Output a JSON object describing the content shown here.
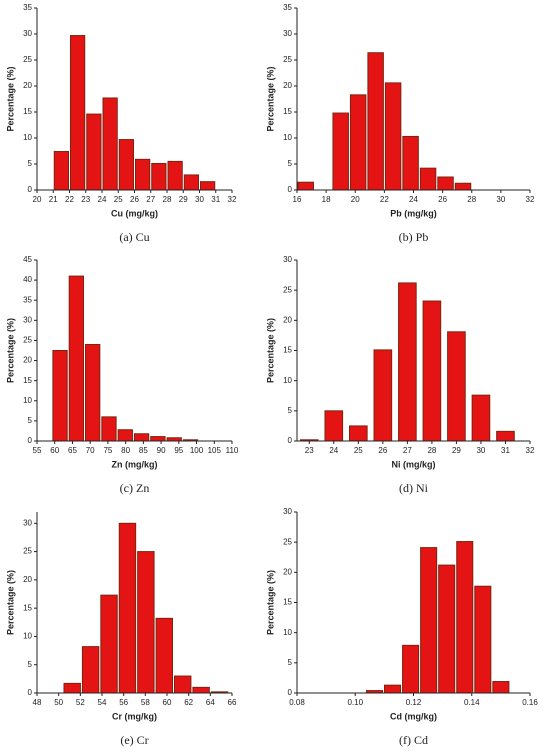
{
  "chart_data": [
    {
      "type": "histogram",
      "caption": "(a) Cu",
      "xlabel": "Cu (mg/kg)",
      "ylabel": "Percentage (%)",
      "color": "#e41414",
      "edge_color": "#7a2410",
      "bins": [
        21,
        22,
        23,
        24,
        25,
        26,
        27,
        28,
        29,
        30,
        31
      ],
      "values": [
        7.4,
        29.7,
        14.6,
        17.7,
        9.7,
        5.9,
        5.1,
        5.5,
        2.9,
        1.6
      ],
      "xlim": [
        20,
        32
      ],
      "xticks": [
        20,
        21,
        22,
        23,
        24,
        25,
        26,
        27,
        28,
        29,
        30,
        31,
        32
      ],
      "ylim": [
        0,
        35
      ],
      "yticks": [
        0,
        5,
        10,
        15,
        20,
        25,
        30,
        35
      ]
    },
    {
      "type": "histogram",
      "caption": "(b) Pb",
      "xlabel": "Pb (mg/kg)",
      "ylabel": "Percentage (%)",
      "color": "#e41414",
      "edge_color": "#7a2410",
      "bins": [
        16,
        17.2,
        18.4,
        19.6,
        20.8,
        22,
        23.2,
        24.4,
        25.6,
        26.8,
        28
      ],
      "values": [
        1.5,
        0,
        14.8,
        18.3,
        26.4,
        20.6,
        10.3,
        4.2,
        2.5,
        1.3
      ],
      "xlim": [
        16,
        32
      ],
      "xticks": [
        16,
        18,
        20,
        22,
        24,
        26,
        28,
        30,
        32
      ],
      "ylim": [
        0,
        35
      ],
      "yticks": [
        0,
        5,
        10,
        15,
        20,
        25,
        30,
        35
      ]
    },
    {
      "type": "histogram",
      "caption": "(c) Zn",
      "xlabel": "Zn (mg/kg)",
      "ylabel": "Percentage (%)",
      "color": "#e41414",
      "edge_color": "#7a2410",
      "bins": [
        59.2,
        63.8,
        68.4,
        73,
        77.6,
        82.2,
        86.8,
        91.4,
        96,
        100.6
      ],
      "values": [
        22.5,
        41,
        24,
        6,
        2.8,
        1.8,
        1.1,
        0.8,
        0.3
      ],
      "xlim": [
        55,
        110
      ],
      "xticks": [
        55,
        60,
        65,
        70,
        75,
        80,
        85,
        90,
        95,
        100,
        105,
        110
      ],
      "ylim": [
        0,
        45
      ],
      "yticks": [
        0,
        5,
        10,
        15,
        20,
        25,
        30,
        35,
        40,
        45
      ]
    },
    {
      "type": "histogram",
      "caption": "(d) Ni",
      "xlabel": "Ni (mg/kg)",
      "ylabel": "Percentage (%)",
      "color": "#e41414",
      "edge_color": "#7a2410",
      "bins": [
        22.6,
        23.4,
        23.6,
        24.4,
        24.6,
        25.4,
        25.6,
        26.4,
        26.6,
        27.4,
        27.6,
        28.4,
        28.6,
        29.4,
        29.6,
        30.4,
        30.6,
        31.4
      ],
      "values": [
        0.2,
        0,
        5,
        0,
        2.5,
        0,
        15.1,
        0,
        26.2,
        0,
        23.2,
        0,
        18.1,
        0,
        7.6,
        0,
        1.6
      ],
      "xlim": [
        22.5,
        32
      ],
      "xticks": [
        23,
        24,
        25,
        26,
        27,
        28,
        29,
        30,
        31,
        32
      ],
      "ylim": [
        0,
        30
      ],
      "yticks": [
        0,
        5,
        10,
        15,
        20,
        25,
        30
      ]
    },
    {
      "type": "histogram",
      "caption": "(e) Cr",
      "xlabel": "Cr (mg/kg)",
      "ylabel": "Percentage (%)",
      "color": "#e41414",
      "edge_color": "#7a2410",
      "bins": [
        50.4,
        52.1,
        53.8,
        55.5,
        57.2,
        58.9,
        60.6,
        62.3,
        64,
        65.7
      ],
      "values": [
        1.7,
        8.2,
        17.3,
        30,
        25,
        13.2,
        3,
        1,
        0.2
      ],
      "xlim": [
        48,
        66
      ],
      "xticks": [
        48,
        50,
        52,
        54,
        56,
        58,
        60,
        62,
        64,
        66
      ],
      "ylim": [
        0,
        32
      ],
      "yticks": [
        0,
        5,
        10,
        15,
        20,
        25,
        30
      ]
    },
    {
      "type": "histogram",
      "caption": "(f) Cd",
      "xlabel": "Cd (mg/kg)",
      "ylabel": "Percentage (%)",
      "color": "#e41414",
      "edge_color": "#7a2410",
      "bins": [
        0.1035,
        0.1097,
        0.1159,
        0.1221,
        0.1283,
        0.1345,
        0.1407,
        0.1469,
        0.1531
      ],
      "values": [
        0.4,
        1.3,
        7.9,
        24.1,
        21.2,
        25.1,
        17.7,
        1.9
      ],
      "xlim": [
        0.08,
        0.16
      ],
      "xticks": [
        0.08,
        {
          "value": 0.1,
          "label": "0.10"
        },
        0.12,
        0.14,
        0.16
      ],
      "ylim": [
        0,
        30
      ],
      "yticks": [
        0,
        5,
        10,
        15,
        20,
        25,
        30
      ]
    }
  ]
}
